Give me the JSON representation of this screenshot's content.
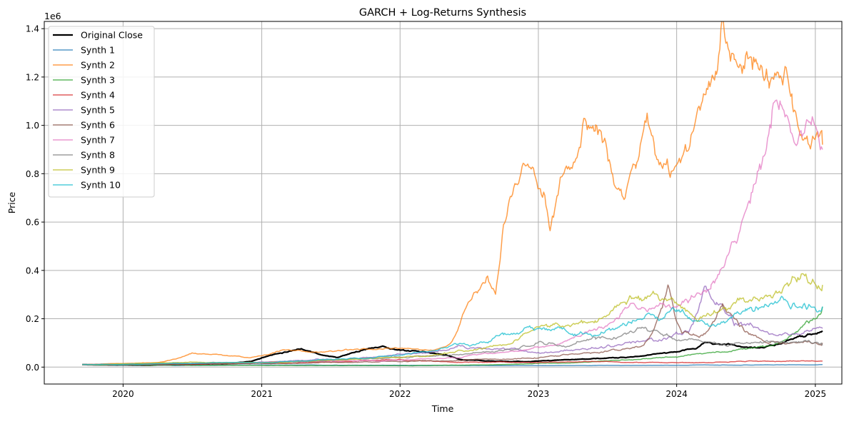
{
  "chart_data": {
    "type": "line",
    "title": "GARCH + Log-Returns Synthesis",
    "xlabel": "Time",
    "ylabel": "Price",
    "y_scale_label": "1e6",
    "xlim": [
      "2019-06-07",
      "2025-03-12"
    ],
    "ylim": [
      -0.07,
      1.43
    ],
    "y_unit_multiplier": 1000000,
    "grid": true,
    "legend_position": "top-left",
    "x_ticks": [
      {
        "date": "2020-01-01",
        "label": "2020"
      },
      {
        "date": "2021-01-01",
        "label": "2021"
      },
      {
        "date": "2022-01-01",
        "label": "2022"
      },
      {
        "date": "2023-01-01",
        "label": "2023"
      },
      {
        "date": "2024-01-01",
        "label": "2024"
      },
      {
        "date": "2025-01-01",
        "label": "2025"
      }
    ],
    "y_ticks": [
      {
        "value": 0.0,
        "label": "0.0"
      },
      {
        "value": 0.2,
        "label": "0.2"
      },
      {
        "value": 0.4,
        "label": "0.4"
      },
      {
        "value": 0.6,
        "label": "0.6"
      },
      {
        "value": 0.8,
        "label": "0.8"
      },
      {
        "value": 1.0,
        "label": "1.0"
      },
      {
        "value": 1.2,
        "label": "1.2"
      },
      {
        "value": 1.4,
        "label": "1.4"
      }
    ],
    "series": [
      {
        "name": "Original Close",
        "color": "#000000",
        "width": 2.2,
        "opacity": 1.0,
        "seed": 11,
        "noise": 0.03,
        "points": [
          [
            "2019-09-15",
            0.01
          ],
          [
            "2020-03-01",
            0.008
          ],
          [
            "2020-06-01",
            0.012
          ],
          [
            "2020-10-01",
            0.015
          ],
          [
            "2020-12-01",
            0.025
          ],
          [
            "2021-01-01",
            0.04
          ],
          [
            "2021-02-15",
            0.06
          ],
          [
            "2021-04-15",
            0.08
          ],
          [
            "2021-06-01",
            0.055
          ],
          [
            "2021-07-20",
            0.04
          ],
          [
            "2021-09-01",
            0.06
          ],
          [
            "2021-11-10",
            0.09
          ],
          [
            "2022-01-01",
            0.07
          ],
          [
            "2022-03-01",
            0.06
          ],
          [
            "2022-05-01",
            0.05
          ],
          [
            "2022-06-20",
            0.03
          ],
          [
            "2022-09-01",
            0.025
          ],
          [
            "2022-12-01",
            0.022
          ],
          [
            "2023-03-01",
            0.03
          ],
          [
            "2023-06-01",
            0.035
          ],
          [
            "2023-09-01",
            0.04
          ],
          [
            "2023-12-01",
            0.06
          ],
          [
            "2024-02-15",
            0.075
          ],
          [
            "2024-03-15",
            0.1
          ],
          [
            "2024-06-01",
            0.09
          ],
          [
            "2024-08-01",
            0.08
          ],
          [
            "2024-10-01",
            0.095
          ],
          [
            "2024-12-15",
            0.14
          ],
          [
            "2025-01-20",
            0.15
          ]
        ]
      },
      {
        "name": "Synth 1",
        "color": "#1f77b4",
        "width": 1.5,
        "opacity": 0.75,
        "seed": 21,
        "noise": 0.05,
        "points": [
          [
            "2019-09-15",
            0.01
          ],
          [
            "2020-06-01",
            0.007
          ],
          [
            "2021-01-01",
            0.009
          ],
          [
            "2022-01-01",
            0.007
          ],
          [
            "2023-01-01",
            0.006
          ],
          [
            "2024-01-01",
            0.008
          ],
          [
            "2025-01-20",
            0.01
          ]
        ]
      },
      {
        "name": "Synth 2",
        "color": "#ff7f0e",
        "width": 1.5,
        "opacity": 0.75,
        "seed": 31,
        "noise": 0.035,
        "points": [
          [
            "2019-09-15",
            0.01
          ],
          [
            "2020-01-01",
            0.015
          ],
          [
            "2020-04-01",
            0.02
          ],
          [
            "2020-07-01",
            0.06
          ],
          [
            "2020-10-01",
            0.05
          ],
          [
            "2020-12-01",
            0.04
          ],
          [
            "2021-03-01",
            0.07
          ],
          [
            "2021-06-01",
            0.06
          ],
          [
            "2021-09-01",
            0.07
          ],
          [
            "2022-01-01",
            0.075
          ],
          [
            "2022-04-01",
            0.07
          ],
          [
            "2022-05-15",
            0.1
          ],
          [
            "2022-06-15",
            0.22
          ],
          [
            "2022-07-15",
            0.3
          ],
          [
            "2022-08-20",
            0.37
          ],
          [
            "2022-09-10",
            0.32
          ],
          [
            "2022-10-01",
            0.6
          ],
          [
            "2022-11-01",
            0.75
          ],
          [
            "2022-12-01",
            0.85
          ],
          [
            "2023-01-15",
            0.7
          ],
          [
            "2023-02-01",
            0.55
          ],
          [
            "2023-03-01",
            0.78
          ],
          [
            "2023-04-01",
            0.82
          ],
          [
            "2023-05-01",
            0.98
          ],
          [
            "2023-06-01",
            0.95
          ],
          [
            "2023-07-01",
            0.9
          ],
          [
            "2023-07-20",
            0.75
          ],
          [
            "2023-08-15",
            0.7
          ],
          [
            "2023-09-15",
            0.85
          ],
          [
            "2023-10-15",
            1.0
          ],
          [
            "2023-11-10",
            0.8
          ],
          [
            "2023-12-15",
            0.8
          ],
          [
            "2024-01-15",
            0.9
          ],
          [
            "2024-02-20",
            1.0
          ],
          [
            "2024-03-20",
            1.1
          ],
          [
            "2024-04-15",
            1.15
          ],
          [
            "2024-05-01",
            1.32
          ],
          [
            "2024-06-01",
            1.15
          ],
          [
            "2024-07-01",
            1.25
          ],
          [
            "2024-08-01",
            1.3
          ],
          [
            "2024-09-01",
            1.22
          ],
          [
            "2024-10-01",
            1.25
          ],
          [
            "2024-11-01",
            1.1
          ],
          [
            "2024-12-01",
            0.95
          ],
          [
            "2025-01-20",
            0.92
          ]
        ]
      },
      {
        "name": "Synth 3",
        "color": "#2ca02c",
        "width": 1.5,
        "opacity": 0.75,
        "seed": 41,
        "noise": 0.05,
        "points": [
          [
            "2019-09-15",
            0.01
          ],
          [
            "2020-06-01",
            0.008
          ],
          [
            "2021-01-01",
            0.007
          ],
          [
            "2022-01-01",
            0.006
          ],
          [
            "2022-07-01",
            0.008
          ],
          [
            "2023-01-01",
            0.015
          ],
          [
            "2023-09-01",
            0.03
          ],
          [
            "2024-01-01",
            0.045
          ],
          [
            "2024-06-01",
            0.07
          ],
          [
            "2024-10-01",
            0.1
          ],
          [
            "2024-12-15",
            0.18
          ],
          [
            "2025-01-20",
            0.25
          ]
        ]
      },
      {
        "name": "Synth 4",
        "color": "#d62728",
        "width": 1.5,
        "opacity": 0.75,
        "seed": 51,
        "noise": 0.05,
        "points": [
          [
            "2019-09-15",
            0.01
          ],
          [
            "2020-06-01",
            0.012
          ],
          [
            "2021-01-01",
            0.015
          ],
          [
            "2022-01-01",
            0.03
          ],
          [
            "2022-06-01",
            0.02
          ],
          [
            "2023-01-01",
            0.02
          ],
          [
            "2023-06-01",
            0.022
          ],
          [
            "2024-01-01",
            0.018
          ],
          [
            "2024-06-01",
            0.022
          ],
          [
            "2024-12-01",
            0.025
          ],
          [
            "2025-01-20",
            0.025
          ]
        ]
      },
      {
        "name": "Synth 5",
        "color": "#9467bd",
        "width": 1.5,
        "opacity": 0.75,
        "seed": 61,
        "noise": 0.05,
        "points": [
          [
            "2019-09-15",
            0.01
          ],
          [
            "2020-06-01",
            0.015
          ],
          [
            "2021-01-01",
            0.02
          ],
          [
            "2021-06-01",
            0.03
          ],
          [
            "2022-01-01",
            0.05
          ],
          [
            "2022-06-01",
            0.08
          ],
          [
            "2022-10-01",
            0.07
          ],
          [
            "2023-01-01",
            0.06
          ],
          [
            "2023-06-01",
            0.08
          ],
          [
            "2023-12-01",
            0.12
          ],
          [
            "2024-02-01",
            0.15
          ],
          [
            "2024-03-15",
            0.35
          ],
          [
            "2024-04-15",
            0.28
          ],
          [
            "2024-06-01",
            0.18
          ],
          [
            "2024-09-01",
            0.14
          ],
          [
            "2024-12-01",
            0.15
          ],
          [
            "2025-01-20",
            0.16
          ]
        ]
      },
      {
        "name": "Synth 6",
        "color": "#8c564b",
        "width": 1.5,
        "opacity": 0.75,
        "seed": 71,
        "noise": 0.05,
        "points": [
          [
            "2019-09-15",
            0.01
          ],
          [
            "2020-06-01",
            0.012
          ],
          [
            "2021-01-01",
            0.015
          ],
          [
            "2022-01-01",
            0.025
          ],
          [
            "2022-06-01",
            0.03
          ],
          [
            "2023-01-01",
            0.04
          ],
          [
            "2023-06-01",
            0.06
          ],
          [
            "2023-10-01",
            0.09
          ],
          [
            "2023-12-10",
            0.33
          ],
          [
            "2024-01-15",
            0.15
          ],
          [
            "2024-03-01",
            0.12
          ],
          [
            "2024-05-01",
            0.25
          ],
          [
            "2024-07-01",
            0.15
          ],
          [
            "2024-09-01",
            0.1
          ],
          [
            "2025-01-20",
            0.1
          ]
        ]
      },
      {
        "name": "Synth 7",
        "color": "#e377c2",
        "width": 1.5,
        "opacity": 0.75,
        "seed": 81,
        "noise": 0.04,
        "points": [
          [
            "2019-09-15",
            0.01
          ],
          [
            "2020-06-01",
            0.015
          ],
          [
            "2021-01-01",
            0.02
          ],
          [
            "2022-01-01",
            0.03
          ],
          [
            "2022-06-01",
            0.04
          ],
          [
            "2023-01-01",
            0.08
          ],
          [
            "2023-06-01",
            0.15
          ],
          [
            "2023-09-01",
            0.25
          ],
          [
            "2024-01-01",
            0.25
          ],
          [
            "2024-04-01",
            0.35
          ],
          [
            "2024-06-01",
            0.5
          ],
          [
            "2024-08-01",
            0.8
          ],
          [
            "2024-10-01",
            1.15
          ],
          [
            "2024-11-15",
            0.9
          ],
          [
            "2025-01-20",
            0.9
          ]
        ]
      },
      {
        "name": "Synth 8",
        "color": "#7f7f7f",
        "width": 1.5,
        "opacity": 0.75,
        "seed": 91,
        "noise": 0.05,
        "points": [
          [
            "2019-09-15",
            0.01
          ],
          [
            "2020-06-01",
            0.015
          ],
          [
            "2021-01-01",
            0.02
          ],
          [
            "2022-01-01",
            0.04
          ],
          [
            "2022-06-01",
            0.05
          ],
          [
            "2023-01-01",
            0.1
          ],
          [
            "2023-06-01",
            0.12
          ],
          [
            "2023-10-01",
            0.15
          ],
          [
            "2024-01-01",
            0.11
          ],
          [
            "2024-06-01",
            0.1
          ],
          [
            "2024-09-01",
            0.11
          ],
          [
            "2025-01-20",
            0.09
          ]
        ]
      },
      {
        "name": "Synth 9",
        "color": "#bcbd22",
        "width": 1.5,
        "opacity": 0.75,
        "seed": 101,
        "noise": 0.05,
        "points": [
          [
            "2019-09-15",
            0.01
          ],
          [
            "2020-06-01",
            0.02
          ],
          [
            "2021-01-01",
            0.02
          ],
          [
            "2022-01-01",
            0.04
          ],
          [
            "2022-06-01",
            0.06
          ],
          [
            "2023-01-01",
            0.15
          ],
          [
            "2023-06-01",
            0.2
          ],
          [
            "2023-09-01",
            0.3
          ],
          [
            "2024-01-01",
            0.25
          ],
          [
            "2024-03-01",
            0.2
          ],
          [
            "2024-06-01",
            0.25
          ],
          [
            "2024-09-01",
            0.3
          ],
          [
            "2024-11-01",
            0.38
          ],
          [
            "2025-01-20",
            0.34
          ]
        ]
      },
      {
        "name": "Synth 10",
        "color": "#17becf",
        "width": 1.5,
        "opacity": 0.75,
        "seed": 111,
        "noise": 0.05,
        "points": [
          [
            "2019-09-15",
            0.01
          ],
          [
            "2020-06-01",
            0.015
          ],
          [
            "2021-01-01",
            0.02
          ],
          [
            "2022-01-01",
            0.05
          ],
          [
            "2022-06-01",
            0.09
          ],
          [
            "2022-10-01",
            0.13
          ],
          [
            "2023-01-01",
            0.16
          ],
          [
            "2023-06-01",
            0.14
          ],
          [
            "2023-09-01",
            0.18
          ],
          [
            "2024-01-01",
            0.25
          ],
          [
            "2024-04-01",
            0.18
          ],
          [
            "2024-07-01",
            0.25
          ],
          [
            "2024-10-01",
            0.28
          ],
          [
            "2025-01-20",
            0.25
          ]
        ]
      }
    ]
  }
}
